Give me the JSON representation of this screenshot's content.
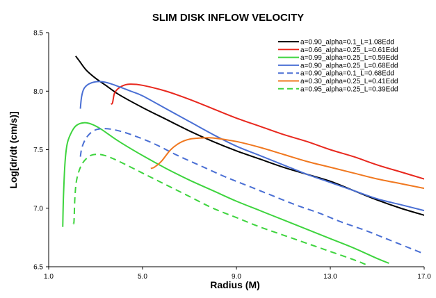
{
  "chart_data": {
    "type": "line",
    "title": "SLIM DISK INFLOW VELOCITY",
    "xlabel": "Radius (M)",
    "ylabel": "Log[dr/dt (cm/s)]",
    "xlim": [
      1.0,
      17.0
    ],
    "ylim": [
      6.5,
      8.5
    ],
    "xticks": [
      1.0,
      5.0,
      9.0,
      13.0,
      17.0
    ],
    "xtick_labels": [
      "1.0",
      "5.0",
      "9.0",
      "13.0",
      "17.0"
    ],
    "yticks": [
      6.5,
      7.0,
      7.5,
      8.0,
      8.5
    ],
    "ytick_labels": [
      "6.5",
      "7.0",
      "7.5",
      "8.0",
      "8.5"
    ],
    "grid": false,
    "legend_position": "top-right",
    "series": [
      {
        "name": "a=0.90_alpha=0.1_L=1.08Edd",
        "color": "#000000",
        "dash": false,
        "points": [
          [
            2.15,
            8.3
          ],
          [
            2.3,
            8.26
          ],
          [
            2.6,
            8.18
          ],
          [
            3.0,
            8.11
          ],
          [
            3.5,
            8.04
          ],
          [
            4.0,
            7.97
          ],
          [
            5.0,
            7.86
          ],
          [
            6.0,
            7.76
          ],
          [
            7.0,
            7.66
          ],
          [
            8.0,
            7.57
          ],
          [
            9.0,
            7.49
          ],
          [
            10.0,
            7.42
          ],
          [
            11.0,
            7.35
          ],
          [
            12.0,
            7.29
          ],
          [
            13.0,
            7.23
          ],
          [
            14.0,
            7.15
          ],
          [
            15.0,
            7.07
          ],
          [
            16.0,
            7.0
          ],
          [
            17.0,
            6.94
          ]
        ]
      },
      {
        "name": "a=0.66_alpha=0.25_L=0.61Edd",
        "color": "#e8281e",
        "dash": false,
        "points": [
          [
            3.65,
            7.89
          ],
          [
            3.72,
            7.9
          ],
          [
            3.8,
            7.98
          ],
          [
            3.95,
            8.02
          ],
          [
            4.2,
            8.05
          ],
          [
            4.5,
            8.06
          ],
          [
            5.0,
            8.05
          ],
          [
            6.0,
            8.0
          ],
          [
            7.0,
            7.93
          ],
          [
            8.0,
            7.85
          ],
          [
            9.0,
            7.77
          ],
          [
            10.0,
            7.7
          ],
          [
            11.0,
            7.63
          ],
          [
            12.0,
            7.57
          ],
          [
            13.0,
            7.5
          ],
          [
            14.0,
            7.44
          ],
          [
            15.0,
            7.37
          ],
          [
            16.0,
            7.31
          ],
          [
            17.0,
            7.25
          ]
        ]
      },
      {
        "name": "a=0.99_alpha=0.25_L=0.59Edd",
        "color": "#3ed43e",
        "dash": false,
        "points": [
          [
            1.6,
            6.84
          ],
          [
            1.63,
            7.1
          ],
          [
            1.7,
            7.4
          ],
          [
            1.8,
            7.56
          ],
          [
            2.0,
            7.66
          ],
          [
            2.2,
            7.71
          ],
          [
            2.5,
            7.73
          ],
          [
            2.8,
            7.72
          ],
          [
            3.2,
            7.68
          ],
          [
            4.0,
            7.57
          ],
          [
            5.0,
            7.45
          ],
          [
            6.0,
            7.34
          ],
          [
            7.0,
            7.24
          ],
          [
            8.0,
            7.15
          ],
          [
            9.0,
            7.06
          ],
          [
            10.0,
            6.98
          ],
          [
            11.0,
            6.9
          ],
          [
            12.0,
            6.82
          ],
          [
            13.0,
            6.74
          ],
          [
            14.0,
            6.66
          ],
          [
            15.0,
            6.57
          ],
          [
            15.5,
            6.53
          ]
        ]
      },
      {
        "name": "a=0.90_alpha=0.25_L=0.68Edd",
        "color": "#4a6fd4",
        "dash": false,
        "points": [
          [
            2.35,
            7.85
          ],
          [
            2.4,
            7.95
          ],
          [
            2.5,
            8.02
          ],
          [
            2.7,
            8.06
          ],
          [
            3.0,
            8.08
          ],
          [
            3.3,
            8.08
          ],
          [
            3.7,
            8.06
          ],
          [
            4.5,
            8.0
          ],
          [
            5.0,
            7.96
          ],
          [
            6.0,
            7.85
          ],
          [
            7.0,
            7.74
          ],
          [
            8.0,
            7.63
          ],
          [
            9.0,
            7.53
          ],
          [
            10.0,
            7.45
          ],
          [
            11.0,
            7.37
          ],
          [
            12.0,
            7.29
          ],
          [
            13.0,
            7.22
          ],
          [
            14.0,
            7.15
          ],
          [
            15.0,
            7.08
          ],
          [
            16.0,
            7.03
          ],
          [
            17.0,
            6.98
          ]
        ]
      },
      {
        "name": "a=0.90_alpha=0.1_L=0.68Edd",
        "color": "#4a6fd4",
        "dash": true,
        "points": [
          [
            2.35,
            7.44
          ],
          [
            2.42,
            7.52
          ],
          [
            2.6,
            7.6
          ],
          [
            2.9,
            7.66
          ],
          [
            3.3,
            7.68
          ],
          [
            3.8,
            7.67
          ],
          [
            4.5,
            7.63
          ],
          [
            5.5,
            7.55
          ],
          [
            6.5,
            7.45
          ],
          [
            7.5,
            7.36
          ],
          [
            8.5,
            7.27
          ],
          [
            9.5,
            7.19
          ],
          [
            10.5,
            7.11
          ],
          [
            11.5,
            7.03
          ],
          [
            12.5,
            6.96
          ],
          [
            13.5,
            6.88
          ],
          [
            14.5,
            6.81
          ],
          [
            15.5,
            6.73
          ],
          [
            16.5,
            6.65
          ],
          [
            17.0,
            6.61
          ]
        ]
      },
      {
        "name": "a=0.30_alpha=0.25_L=0.41Edd",
        "color": "#f07820",
        "dash": false,
        "points": [
          [
            5.35,
            7.34
          ],
          [
            5.5,
            7.35
          ],
          [
            5.8,
            7.4
          ],
          [
            6.2,
            7.5
          ],
          [
            6.6,
            7.56
          ],
          [
            7.0,
            7.59
          ],
          [
            7.5,
            7.6
          ],
          [
            8.0,
            7.6
          ],
          [
            9.0,
            7.57
          ],
          [
            10.0,
            7.52
          ],
          [
            11.0,
            7.46
          ],
          [
            12.0,
            7.4
          ],
          [
            13.0,
            7.35
          ],
          [
            14.0,
            7.3
          ],
          [
            15.0,
            7.25
          ],
          [
            16.0,
            7.21
          ],
          [
            17.0,
            7.17
          ]
        ]
      },
      {
        "name": "a=0.95_alpha=0.25_L=0.39Edd",
        "color": "#3ed43e",
        "dash": true,
        "points": [
          [
            2.05,
            6.87
          ],
          [
            2.08,
            6.89
          ],
          [
            2.12,
            7.1
          ],
          [
            2.2,
            7.25
          ],
          [
            2.4,
            7.37
          ],
          [
            2.7,
            7.44
          ],
          [
            3.0,
            7.46
          ],
          [
            3.4,
            7.45
          ],
          [
            4.0,
            7.4
          ],
          [
            5.0,
            7.3
          ],
          [
            6.0,
            7.2
          ],
          [
            7.0,
            7.1
          ],
          [
            8.0,
            7.0
          ],
          [
            9.0,
            6.92
          ],
          [
            10.0,
            6.84
          ],
          [
            11.0,
            6.77
          ],
          [
            12.0,
            6.7
          ],
          [
            13.0,
            6.63
          ],
          [
            14.0,
            6.56
          ],
          [
            14.5,
            6.52
          ]
        ]
      }
    ]
  }
}
